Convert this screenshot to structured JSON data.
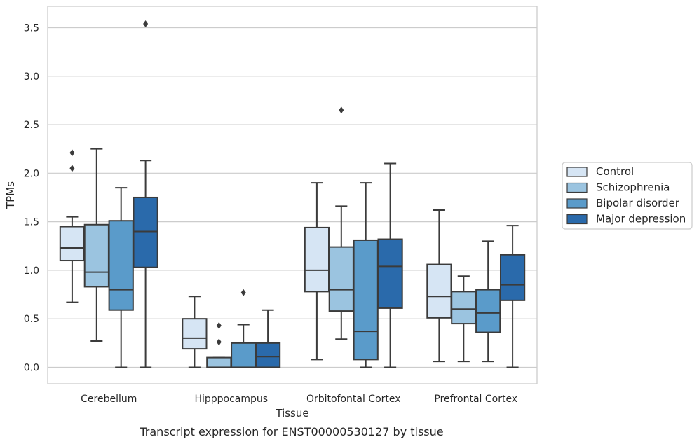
{
  "caption": "Transcript expression for ENST00000530127 by tissue",
  "chart_data": {
    "type": "box",
    "xlabel": "Tissue",
    "ylabel": "TPMs",
    "ylim": [
      -0.17,
      3.72
    ],
    "yticks": [
      "0.0",
      "0.5",
      "1.0",
      "1.5",
      "2.0",
      "2.5",
      "3.0",
      "3.5"
    ],
    "grid": "horizontal",
    "legend_position": "right",
    "categories": [
      "Cerebellum",
      "Hipppocampus",
      "Orbitofontal Cortex",
      "Prefrontal Cortex"
    ],
    "series": [
      {
        "name": "Control",
        "color": "#d6e5f4",
        "boxes": [
          {
            "whisker_low": 0.67,
            "q1": 1.1,
            "median": 1.23,
            "q3": 1.45,
            "whisker_high": 1.55,
            "outliers": [
              2.05,
              2.21
            ]
          },
          {
            "whisker_low": 0.0,
            "q1": 0.19,
            "median": 0.3,
            "q3": 0.5,
            "whisker_high": 0.73,
            "outliers": []
          },
          {
            "whisker_low": 0.08,
            "q1": 0.78,
            "median": 1.0,
            "q3": 1.44,
            "whisker_high": 1.9,
            "outliers": []
          },
          {
            "whisker_low": 0.06,
            "q1": 0.51,
            "median": 0.73,
            "q3": 1.06,
            "whisker_high": 1.62,
            "outliers": []
          }
        ]
      },
      {
        "name": "Schizophrenia",
        "color": "#9bc4e0",
        "boxes": [
          {
            "whisker_low": 0.27,
            "q1": 0.83,
            "median": 0.98,
            "q3": 1.47,
            "whisker_high": 2.25,
            "outliers": []
          },
          {
            "whisker_low": 0.0,
            "q1": 0.0,
            "median": 0.0,
            "q3": 0.1,
            "whisker_high": 0.1,
            "outliers": [
              0.26,
              0.43
            ]
          },
          {
            "whisker_low": 0.29,
            "q1": 0.58,
            "median": 0.8,
            "q3": 1.24,
            "whisker_high": 1.66,
            "outliers": [
              2.65
            ]
          },
          {
            "whisker_low": 0.06,
            "q1": 0.45,
            "median": 0.6,
            "q3": 0.78,
            "whisker_high": 0.94,
            "outliers": []
          }
        ]
      },
      {
        "name": "Bipolar disorder",
        "color": "#5a9bca",
        "boxes": [
          {
            "whisker_low": 0.0,
            "q1": 0.59,
            "median": 0.8,
            "q3": 1.51,
            "whisker_high": 1.85,
            "outliers": []
          },
          {
            "whisker_low": 0.0,
            "q1": 0.0,
            "median": 0.0,
            "q3": 0.25,
            "whisker_high": 0.44,
            "outliers": [
              0.77
            ]
          },
          {
            "whisker_low": 0.0,
            "q1": 0.08,
            "median": 0.37,
            "q3": 1.31,
            "whisker_high": 1.9,
            "outliers": []
          },
          {
            "whisker_low": 0.06,
            "q1": 0.36,
            "median": 0.56,
            "q3": 0.8,
            "whisker_high": 1.3,
            "outliers": []
          }
        ]
      },
      {
        "name": "Major depression",
        "color": "#2a6aab",
        "boxes": [
          {
            "whisker_low": 0.0,
            "q1": 1.03,
            "median": 1.4,
            "q3": 1.75,
            "whisker_high": 2.13,
            "outliers": [
              3.54
            ]
          },
          {
            "whisker_low": 0.0,
            "q1": 0.0,
            "median": 0.11,
            "q3": 0.25,
            "whisker_high": 0.59,
            "outliers": []
          },
          {
            "whisker_low": 0.0,
            "q1": 0.61,
            "median": 1.04,
            "q3": 1.32,
            "whisker_high": 2.1,
            "outliers": []
          },
          {
            "whisker_low": 0.0,
            "q1": 0.69,
            "median": 0.85,
            "q3": 1.16,
            "whisker_high": 1.46,
            "outliers": []
          }
        ]
      }
    ]
  }
}
